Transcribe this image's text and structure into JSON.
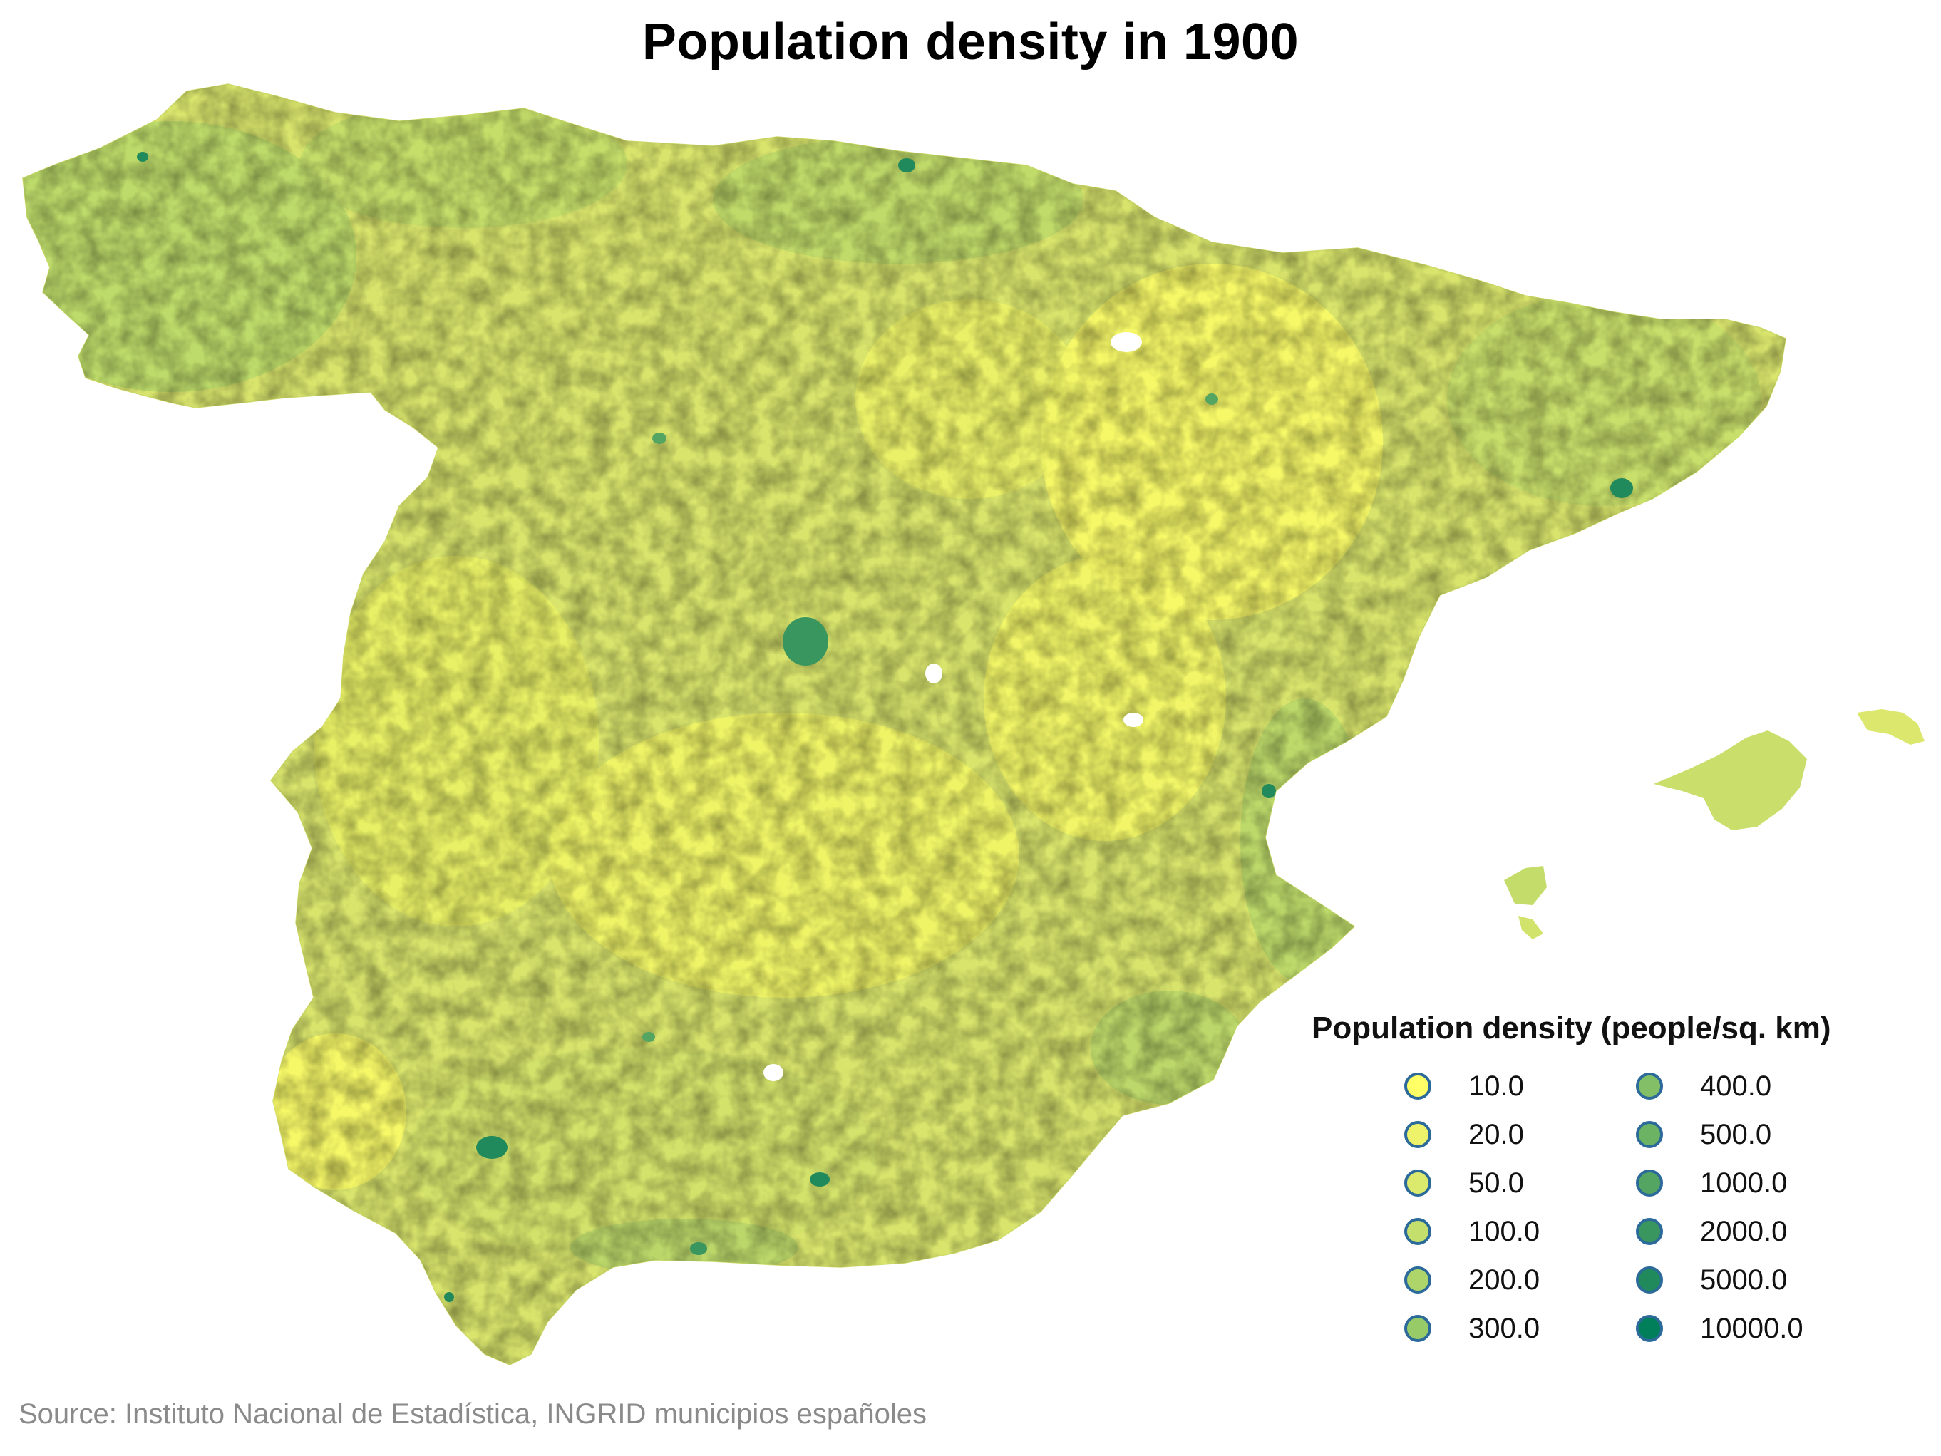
{
  "title": "Population density in 1900",
  "legend": {
    "title": "Population density (people/sq. km)",
    "items": [
      {
        "label": "10.0",
        "color": "#ffff66"
      },
      {
        "label": "20.0",
        "color": "#edf26a"
      },
      {
        "label": "50.0",
        "color": "#dbe96d"
      },
      {
        "label": "100.0",
        "color": "#c4df6c"
      },
      {
        "label": "200.0",
        "color": "#add56a"
      },
      {
        "label": "300.0",
        "color": "#97cb68"
      },
      {
        "label": "400.0",
        "color": "#83bf66"
      },
      {
        "label": "500.0",
        "color": "#6cb364"
      },
      {
        "label": "1000.0",
        "color": "#54a562"
      },
      {
        "label": "2000.0",
        "color": "#3a965f"
      },
      {
        "label": "5000.0",
        "color": "#208a5c"
      },
      {
        "label": "10000.0",
        "color": "#007f5a"
      }
    ]
  },
  "source": "Source: Instituto Nacional de Estadística, INGRID municipios españoles",
  "colors": {
    "base_fill": "#d6e36a",
    "low": "#ffff66",
    "high": "#007f5a"
  }
}
